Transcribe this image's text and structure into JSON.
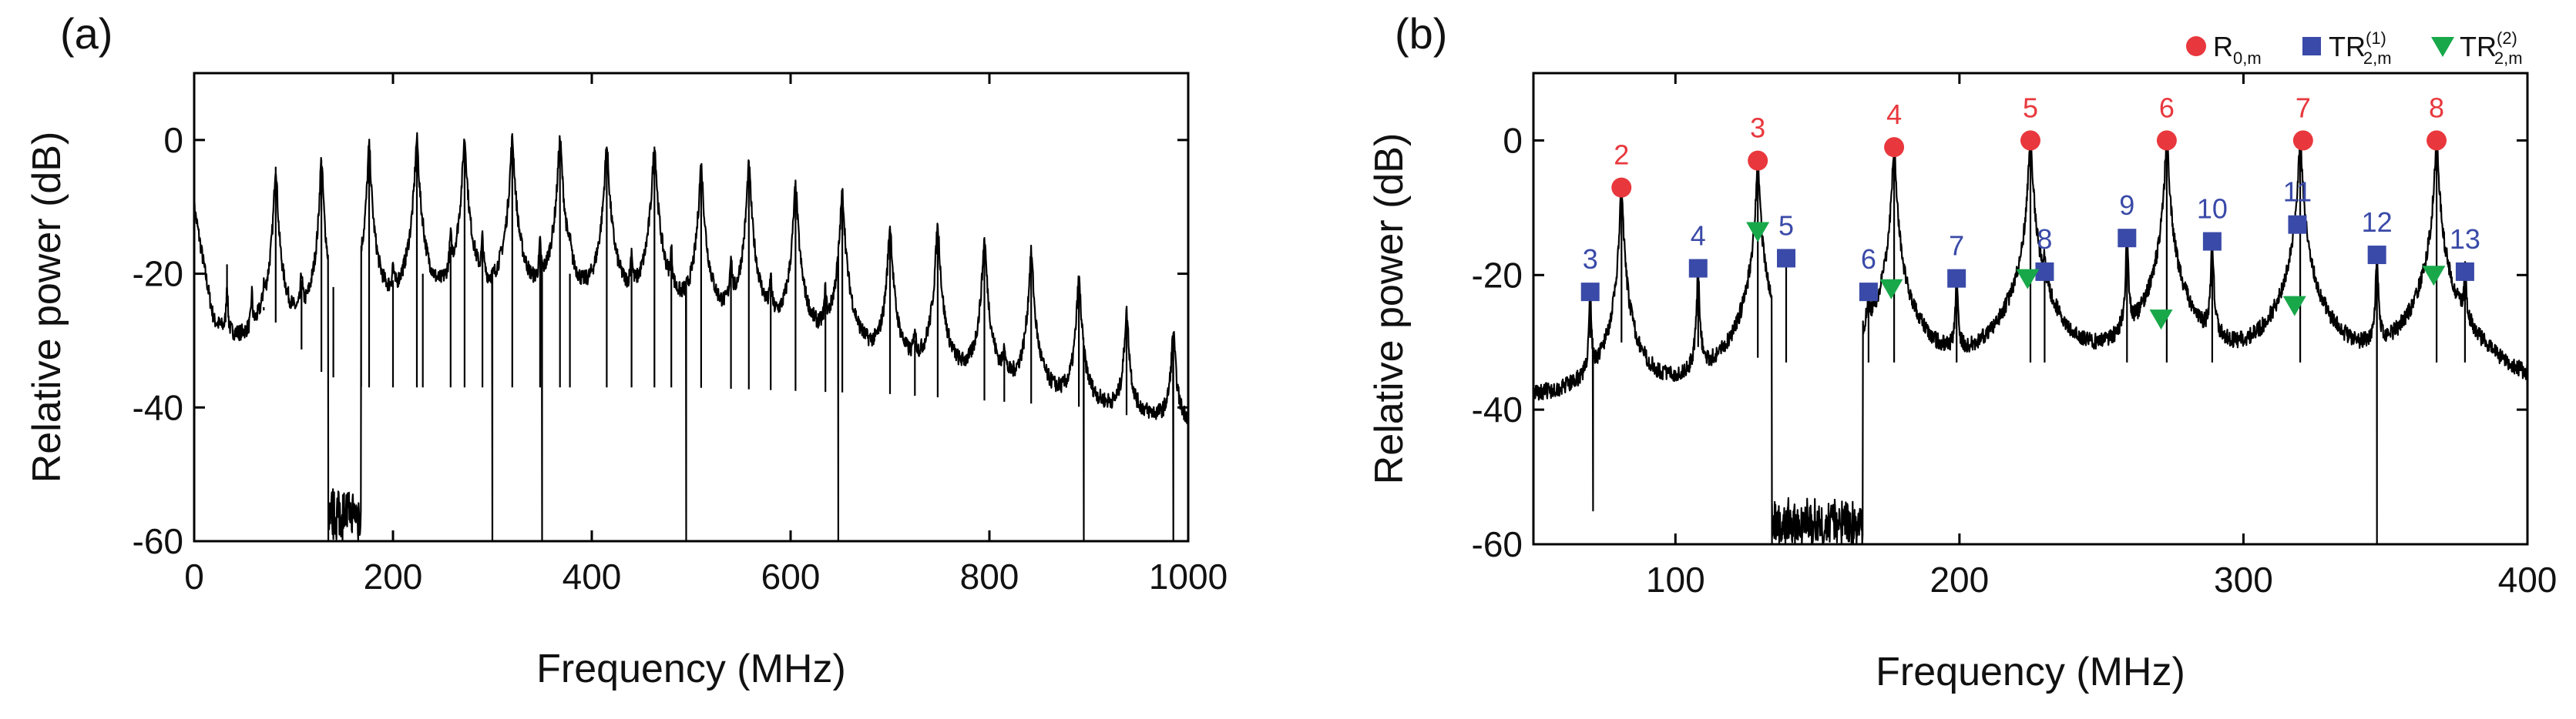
{
  "colors": {
    "R": "#e8383d",
    "TR1": "#3a4aa8",
    "TR2": "#18a84a",
    "trace": "#000000"
  },
  "chart_data": [
    {
      "panel": "(a)",
      "type": "line",
      "xlabel": "Frequency (MHz)",
      "ylabel": "Relative power (dB)",
      "xlim": [
        0,
        1000
      ],
      "ylim": [
        -60,
        10
      ],
      "xticks": [
        0,
        200,
        400,
        600,
        800,
        1000
      ],
      "yticks": [
        -60,
        -40,
        -20,
        0
      ],
      "x_tick_labels": [
        "0",
        "200",
        "400",
        "600",
        "800",
        "1000"
      ],
      "y_tick_labels": [
        "-60",
        "-40",
        "-20",
        "0"
      ],
      "noise_floor": [
        [
          0,
          -10
        ],
        [
          20,
          -28
        ],
        [
          60,
          -36
        ],
        [
          100,
          -42
        ],
        [
          130,
          -47
        ],
        [
          170,
          -49
        ],
        [
          300,
          -49
        ],
        [
          500,
          -49
        ],
        [
          700,
          -50
        ],
        [
          900,
          -52
        ],
        [
          1000,
          -55
        ]
      ],
      "peaks": [
        {
          "f": 33,
          "p": -22,
          "w": 0.6
        },
        {
          "f": 58,
          "p": -24,
          "w": 0.6
        },
        {
          "f": 70,
          "p": -25,
          "w": 0.6
        },
        {
          "f": 82,
          "p": -4,
          "w": 1.2
        },
        {
          "f": 108,
          "p": -21,
          "w": 0.8
        },
        {
          "f": 128,
          "p": -3,
          "w": 1.2
        },
        {
          "f": 140,
          "p": -22,
          "w": 0.8
        },
        {
          "f": 168,
          "p": -24,
          "w": 0.8
        },
        {
          "f": 176,
          "p": -1,
          "w": 1.3
        },
        {
          "f": 200,
          "p": -21,
          "w": 0.8
        },
        {
          "f": 224,
          "p": 0,
          "w": 1.4
        },
        {
          "f": 230,
          "p": -20,
          "w": 0.8
        },
        {
          "f": 258,
          "p": -16,
          "w": 0.9
        },
        {
          "f": 272,
          "p": 0,
          "w": 1.5
        },
        {
          "f": 290,
          "p": -16,
          "w": 0.9
        },
        {
          "f": 320,
          "p": 0,
          "w": 1.5
        },
        {
          "f": 348,
          "p": -17,
          "w": 0.9
        },
        {
          "f": 368,
          "p": 0,
          "w": 1.5
        },
        {
          "f": 378,
          "p": -20,
          "w": 0.9
        },
        {
          "f": 415,
          "p": -1,
          "w": 1.5
        },
        {
          "f": 440,
          "p": -18,
          "w": 0.9
        },
        {
          "f": 463,
          "p": -1,
          "w": 1.5
        },
        {
          "f": 480,
          "p": -18,
          "w": 0.9
        },
        {
          "f": 510,
          "p": -4,
          "w": 1.5
        },
        {
          "f": 540,
          "p": -18,
          "w": 0.9
        },
        {
          "f": 558,
          "p": -4,
          "w": 1.5
        },
        {
          "f": 580,
          "p": -22,
          "w": 0.9
        },
        {
          "f": 605,
          "p": -7,
          "w": 1.5
        },
        {
          "f": 635,
          "p": -24,
          "w": 0.9
        },
        {
          "f": 652,
          "p": -8,
          "w": 1.5
        },
        {
          "f": 700,
          "p": -13,
          "w": 1.5
        },
        {
          "f": 725,
          "p": -30,
          "w": 0.9
        },
        {
          "f": 748,
          "p": -13,
          "w": 1.5
        },
        {
          "f": 795,
          "p": -15,
          "w": 1.5
        },
        {
          "f": 815,
          "p": -32,
          "w": 0.9
        },
        {
          "f": 842,
          "p": -17,
          "w": 1.5
        },
        {
          "f": 890,
          "p": -21,
          "w": 1.5
        },
        {
          "f": 938,
          "p": -26,
          "w": 1.5
        },
        {
          "f": 985,
          "p": -29,
          "w": 1.5
        }
      ],
      "dips": [
        {
          "f": 135,
          "p": -60
        },
        {
          "f": 165,
          "p": -60
        },
        {
          "f": 300,
          "p": -60
        },
        {
          "f": 350,
          "p": -60
        },
        {
          "f": 495,
          "p": -60
        },
        {
          "f": 648,
          "p": -60
        },
        {
          "f": 895,
          "p": -60
        },
        {
          "f": 985,
          "p": -60
        }
      ],
      "floor_bands": [
        [
          135,
          168,
          -56
        ]
      ]
    },
    {
      "panel": "(b)",
      "type": "line",
      "xlabel": "Frequency (MHz)",
      "ylabel": "Relative power (dB)",
      "xlim": [
        50,
        400
      ],
      "ylim": [
        -60,
        10
      ],
      "xticks": [
        100,
        200,
        300,
        400
      ],
      "yticks": [
        -60,
        -40,
        -20,
        0
      ],
      "x_tick_labels": [
        "100",
        "200",
        "300",
        "400"
      ],
      "y_tick_labels": [
        "-60",
        "-40",
        "-20",
        "0"
      ],
      "noise_floor": [
        [
          50,
          -40
        ],
        [
          80,
          -42
        ],
        [
          120,
          -43
        ],
        [
          134,
          -45
        ],
        [
          170,
          -45
        ],
        [
          230,
          -45
        ],
        [
          270,
          -45
        ],
        [
          320,
          -45
        ],
        [
          380,
          -45
        ],
        [
          400,
          -44
        ]
      ],
      "peaks": [
        {
          "f": 70,
          "p": -22.5,
          "w": 0.25
        },
        {
          "f": 81,
          "p": -7,
          "w": 0.4
        },
        {
          "f": 108,
          "p": -19,
          "w": 0.3
        },
        {
          "f": 129,
          "p": -3,
          "w": 0.45
        },
        {
          "f": 139,
          "p": -17.5,
          "w": 0.3
        },
        {
          "f": 168,
          "p": -22.5,
          "w": 0.3
        },
        {
          "f": 177,
          "p": -1,
          "w": 0.45
        },
        {
          "f": 199,
          "p": -20.5,
          "w": 0.3
        },
        {
          "f": 225,
          "p": 0,
          "w": 0.5
        },
        {
          "f": 230,
          "p": -19.5,
          "w": 0.3
        },
        {
          "f": 259,
          "p": -14.5,
          "w": 0.3
        },
        {
          "f": 273,
          "p": 0,
          "w": 0.5
        },
        {
          "f": 289,
          "p": -15,
          "w": 0.3
        },
        {
          "f": 320,
          "p": 0,
          "w": 0.5
        },
        {
          "f": 347,
          "p": -17,
          "w": 0.3
        },
        {
          "f": 368,
          "p": 0,
          "w": 0.5
        },
        {
          "f": 378,
          "p": -19.5,
          "w": 0.3
        }
      ],
      "dips": [
        {
          "f": 71,
          "p": -55
        },
        {
          "f": 134,
          "p": -60
        },
        {
          "f": 347,
          "p": -60
        }
      ],
      "floor_bands": [
        [
          134,
          166,
          -57
        ]
      ],
      "legend": [
        {
          "series": "R",
          "marker": "circle",
          "label": "R",
          "sub": "0,m",
          "sup": ""
        },
        {
          "series": "TR1",
          "marker": "square",
          "label": "TR",
          "sub": "2,m",
          "sup": "(1)"
        },
        {
          "series": "TR2",
          "marker": "triangle",
          "label": "TR",
          "sub": "2,m",
          "sup": "(2)"
        }
      ],
      "series": [
        {
          "name": "R0,m",
          "key": "R",
          "marker": "circle",
          "points": [
            {
              "x": 81,
              "y": -7,
              "label": "2"
            },
            {
              "x": 129,
              "y": -3,
              "label": "3"
            },
            {
              "x": 177,
              "y": -1,
              "label": "4"
            },
            {
              "x": 225,
              "y": 0,
              "label": "5"
            },
            {
              "x": 273,
              "y": 0,
              "label": "6"
            },
            {
              "x": 321,
              "y": 0,
              "label": "7"
            },
            {
              "x": 368,
              "y": 0,
              "label": "8"
            }
          ]
        },
        {
          "name": "TR(1)2,m",
          "key": "TR1",
          "marker": "square",
          "points": [
            {
              "x": 70,
              "y": -22.5,
              "label": "3"
            },
            {
              "x": 108,
              "y": -19,
              "label": "4"
            },
            {
              "x": 139,
              "y": -17.5,
              "label": "5"
            },
            {
              "x": 168,
              "y": -22.5,
              "label": "6"
            },
            {
              "x": 199,
              "y": -20.5,
              "label": "7"
            },
            {
              "x": 230,
              "y": -19.5,
              "label": "8"
            },
            {
              "x": 259,
              "y": -14.5,
              "label": "9"
            },
            {
              "x": 289,
              "y": -15,
              "label": "10"
            },
            {
              "x": 319,
              "y": -12.5,
              "label": "11"
            },
            {
              "x": 347,
              "y": -17,
              "label": "12"
            },
            {
              "x": 378,
              "y": -19.5,
              "label": "13"
            }
          ]
        },
        {
          "name": "TR(2)2,m",
          "key": "TR2",
          "marker": "triangle",
          "points": [
            {
              "x": 129,
              "y": -13.5
            },
            {
              "x": 176,
              "y": -22
            },
            {
              "x": 224,
              "y": -20.5
            },
            {
              "x": 271,
              "y": -26.5
            },
            {
              "x": 318,
              "y": -24.5
            },
            {
              "x": 367,
              "y": -20
            }
          ]
        }
      ]
    }
  ]
}
